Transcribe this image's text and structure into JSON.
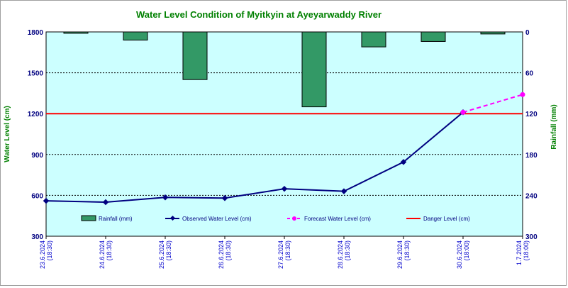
{
  "chart_data": {
    "type": "bar+line",
    "title": "Water Level Condition of Myitkyin at Ayeyarwaddy River",
    "ylabel_left": "Water Level (cm)",
    "ylabel_right": "Rainfall (mm)",
    "ylim_left": [
      300,
      1800
    ],
    "ylim_right": [
      0,
      300
    ],
    "right_axis_inverted": true,
    "yticks_left": [
      300,
      600,
      900,
      1200,
      1500,
      1800
    ],
    "yticks_right": [
      0,
      60,
      120,
      180,
      240,
      300
    ],
    "categories": [
      [
        "23.6.2024",
        "(18:30)"
      ],
      [
        "24.6.2024",
        "(18:30)"
      ],
      [
        "25.6.2024",
        "(18:30)"
      ],
      [
        "26.6.2024",
        "(18:30)"
      ],
      [
        "27.6.2024",
        "(18:30)"
      ],
      [
        "28.6.2024",
        "(18:30)"
      ],
      [
        "29.6.2024",
        "(18:30)"
      ],
      [
        "30.6.2024",
        "(18:00)"
      ],
      [
        "1.7.2024",
        "(18:00)"
      ]
    ],
    "series": [
      {
        "name": "Rainfall (mm)",
        "kind": "bar",
        "axis": "right",
        "color": "#339966",
        "values": [
          2,
          12,
          70,
          null,
          110,
          22,
          14,
          3,
          null
        ]
      },
      {
        "name": "Observed Water Level (cm)",
        "kind": "line",
        "axis": "left",
        "color": "#000080",
        "values": [
          560,
          550,
          585,
          580,
          648,
          630,
          845,
          1210,
          null
        ]
      },
      {
        "name": "Forecast Water Level (cm)",
        "kind": "dashed-line",
        "axis": "left",
        "color": "#ff00ff",
        "values": [
          null,
          null,
          null,
          null,
          null,
          null,
          null,
          1210,
          1340
        ]
      },
      {
        "name": "Danger Level (cm)",
        "kind": "hline",
        "axis": "left",
        "color": "#ff0000",
        "value": 1200
      }
    ],
    "plot_background": "#ccffff",
    "grid": "horizontal-dashed",
    "legend_position": "bottom-inside"
  }
}
